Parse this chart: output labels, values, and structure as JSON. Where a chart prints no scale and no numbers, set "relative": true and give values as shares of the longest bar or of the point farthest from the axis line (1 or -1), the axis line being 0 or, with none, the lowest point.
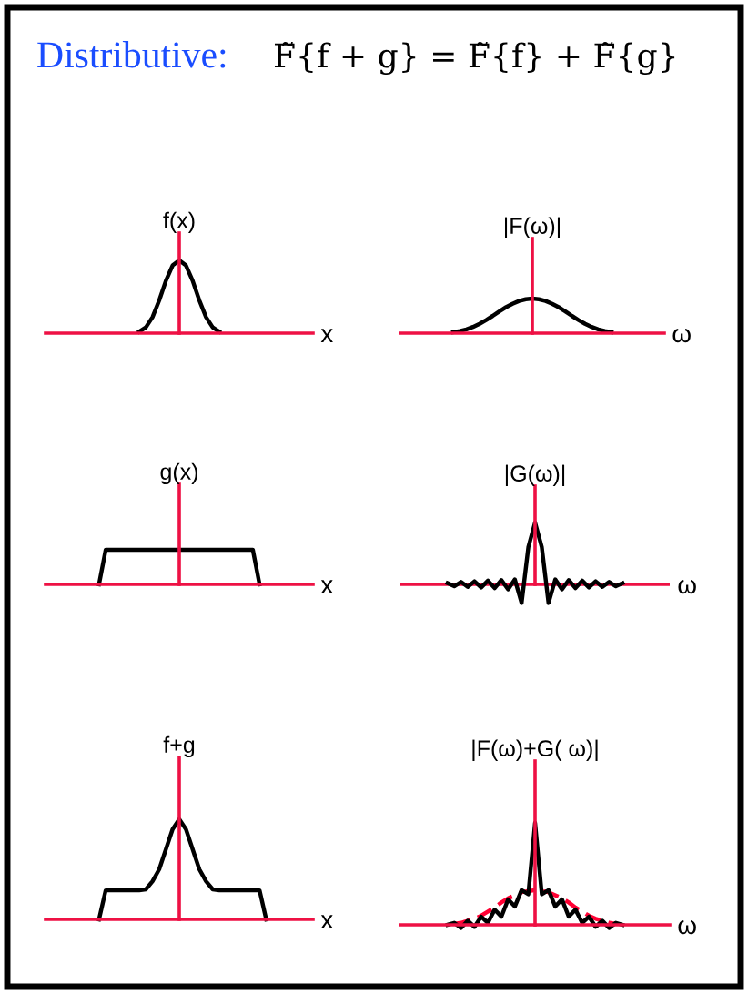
{
  "chart_data": [
    {
      "type": "other",
      "title": "Distributive:",
      "subtitle": "F̃{f + g} = F̃{f} + F̃{g}"
    },
    {
      "type": "line",
      "title": "f(x)",
      "xlabel": "x",
      "relative": true,
      "categories": [
        null,
        null,
        null,
        null,
        null,
        null,
        null,
        null,
        null,
        null,
        null,
        null,
        null,
        null,
        null,
        null,
        null,
        null,
        null,
        null,
        null,
        null,
        null,
        null,
        null,
        null,
        null,
        null,
        null,
        null,
        null,
        null,
        null,
        null,
        null,
        null,
        null,
        null,
        null,
        null,
        null
      ],
      "series": [
        {
          "color": "#000000",
          "values": [
            null,
            null,
            null,
            null,
            null,
            null,
            null,
            null,
            null,
            null,
            null,
            null,
            null,
            null,
            0.02,
            0.08,
            0.22,
            0.45,
            0.72,
            0.93,
            1,
            0.93,
            0.72,
            0.45,
            0.22,
            0.08,
            0.02,
            null,
            null,
            null,
            null,
            null,
            null,
            null,
            null,
            null,
            null,
            null,
            null,
            null,
            null
          ]
        }
      ]
    },
    {
      "type": "line",
      "title": "|F(ω)|",
      "xlabel": "ω",
      "relative": true,
      "categories": [
        null,
        null,
        null,
        null,
        null,
        null,
        null,
        null,
        null,
        null,
        null,
        null,
        null,
        null,
        null,
        null,
        null,
        null,
        null,
        null,
        null,
        null,
        null,
        null,
        null,
        null,
        null,
        null,
        null,
        null,
        null,
        null,
        null,
        null,
        null,
        null,
        null,
        null,
        null,
        null,
        null
      ],
      "series": [
        {
          "color": "#000000",
          "values": [
            null,
            null,
            null,
            null,
            null,
            null,
            null,
            null,
            0.03,
            0.06,
            0.11,
            0.18,
            0.27,
            0.38,
            0.5,
            0.63,
            0.75,
            0.85,
            0.93,
            0.98,
            1,
            0.98,
            0.93,
            0.85,
            0.75,
            0.63,
            0.5,
            0.38,
            0.27,
            0.18,
            0.11,
            0.06,
            0.03,
            null,
            null,
            null,
            null,
            null,
            null,
            null,
            null
          ]
        }
      ]
    },
    {
      "type": "line",
      "title": "g(x)",
      "xlabel": "x",
      "relative": true,
      "categories": [
        null,
        null,
        null,
        null,
        null,
        null,
        null,
        null,
        null,
        null,
        null,
        null,
        null,
        null,
        null,
        null,
        null,
        null,
        null,
        null,
        null,
        null,
        null,
        null,
        null,
        null,
        null,
        null,
        null,
        null,
        null,
        null,
        null,
        null,
        null,
        null,
        null,
        null,
        null,
        null,
        null
      ],
      "series": [
        {
          "color": "#000000",
          "values": [
            null,
            null,
            null,
            null,
            null,
            null,
            null,
            null,
            0,
            1,
            1,
            1,
            1,
            1,
            1,
            1,
            1,
            1,
            1,
            1,
            1,
            1,
            1,
            1,
            1,
            1,
            1,
            1,
            1,
            1,
            1,
            1,
            0,
            null,
            null,
            null,
            null,
            null,
            null,
            null,
            null
          ]
        }
      ]
    },
    {
      "type": "line",
      "title": "|G(ω)|",
      "xlabel": "ω",
      "relative": true,
      "ref_lines": [
        {
          "axis": "y",
          "value": 0,
          "color": "#ee1144"
        }
      ],
      "categories": [
        null,
        null,
        null,
        null,
        null,
        null,
        null,
        null,
        null,
        null,
        null,
        null,
        null,
        null,
        null,
        null,
        null,
        null,
        null,
        null,
        null,
        null,
        null,
        null,
        null,
        null,
        null,
        null,
        null,
        null,
        null,
        null,
        null,
        null,
        null,
        null,
        null,
        null,
        null,
        null,
        null
      ],
      "series": [
        {
          "color": "#000000",
          "values": [
            null,
            null,
            null,
            null,
            null,
            null,
            null,
            0.02,
            -0.03,
            0.04,
            -0.04,
            0.05,
            -0.05,
            0.06,
            -0.06,
            0.07,
            -0.08,
            0.08,
            -0.3,
            0.6,
            1,
            0.6,
            -0.3,
            0.08,
            -0.08,
            0.07,
            -0.06,
            0.06,
            -0.05,
            0.05,
            -0.04,
            0.04,
            -0.03,
            0.02,
            null,
            null,
            null,
            null,
            null,
            null,
            null
          ]
        }
      ]
    },
    {
      "type": "line",
      "title": "f+g",
      "xlabel": "x",
      "relative": true,
      "categories": [
        null,
        null,
        null,
        null,
        null,
        null,
        null,
        null,
        null,
        null,
        null,
        null,
        null,
        null,
        null,
        null,
        null,
        null,
        null,
        null,
        null,
        null,
        null,
        null,
        null,
        null,
        null,
        null,
        null,
        null,
        null,
        null,
        null,
        null,
        null,
        null,
        null,
        null,
        null,
        null,
        null
      ],
      "series": [
        {
          "color": "#000000",
          "values": [
            null,
            null,
            null,
            null,
            null,
            null,
            null,
            null,
            0,
            0.29,
            0.29,
            0.29,
            0.29,
            0.29,
            0.29,
            0.3,
            0.38,
            0.5,
            0.7,
            0.9,
            1,
            0.9,
            0.7,
            0.5,
            0.38,
            0.3,
            0.29,
            0.29,
            0.29,
            0.29,
            0.29,
            0.29,
            0.29,
            0,
            null,
            null,
            null,
            null,
            null,
            null,
            null
          ]
        }
      ]
    },
    {
      "type": "line",
      "title": "|F(ω)+G( ω)|",
      "xlabel": "ω",
      "relative": true,
      "categories": [
        null,
        null,
        null,
        null,
        null,
        null,
        null,
        null,
        null,
        null,
        null,
        null,
        null,
        null,
        null,
        null,
        null,
        null,
        null,
        null,
        null,
        null,
        null,
        null,
        null,
        null,
        null,
        null,
        null,
        null,
        null,
        null,
        null,
        null,
        null,
        null,
        null,
        null,
        null,
        null,
        null
      ],
      "series": [
        {
          "color": "#ff0033",
          "line_style": "dashed",
          "values": [
            null,
            null,
            null,
            null,
            null,
            null,
            null,
            null,
            0.01,
            0.02,
            0.04,
            0.06,
            0.09,
            0.13,
            0.17,
            0.22,
            0.26,
            0.29,
            0.32,
            0.33,
            0.34,
            0.33,
            0.32,
            0.29,
            0.26,
            0.22,
            0.17,
            0.13,
            0.09,
            0.06,
            0.04,
            0.02,
            0.01,
            null,
            null,
            null,
            null,
            null,
            null,
            null,
            null
          ]
        },
        {
          "color": "#000000",
          "values": [
            null,
            null,
            null,
            null,
            null,
            null,
            null,
            0,
            0.02,
            -0.03,
            0.04,
            -0.02,
            0.08,
            0.02,
            0.15,
            0.08,
            0.25,
            0.18,
            0.34,
            0.3,
            1,
            0.3,
            0.34,
            0.18,
            0.25,
            0.08,
            0.15,
            0.02,
            0.08,
            -0.02,
            0.04,
            -0.03,
            0.02,
            0,
            null,
            null,
            null,
            null,
            null,
            null,
            null
          ]
        }
      ]
    }
  ]
}
